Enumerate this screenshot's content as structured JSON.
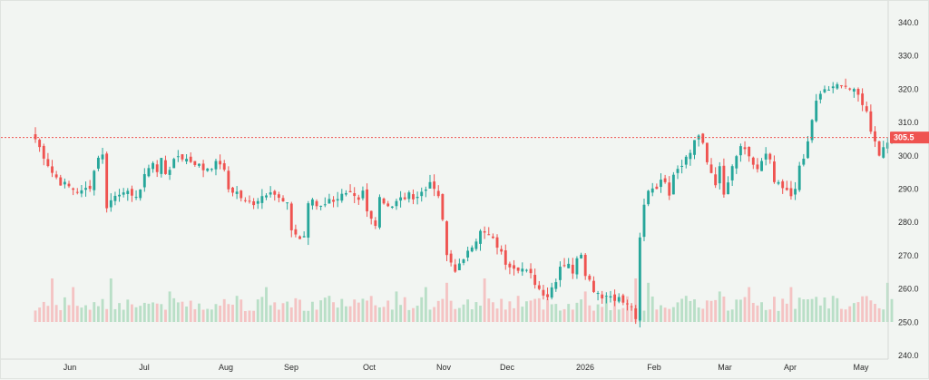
{
  "chart_data": {
    "type": "candlestick",
    "y_axis": {
      "min": 240,
      "max": 340,
      "ticks": [
        "340.0",
        "330.0",
        "320.0",
        "310.0",
        "300.0",
        "290.0",
        "280.0",
        "270.0",
        "260.0",
        "250.0",
        "240.0"
      ]
    },
    "x_axis": {
      "labels": [
        "Jun",
        "Jul",
        "Aug",
        "Sep",
        "Oct",
        "Nov",
        "Dec",
        "2026",
        "Feb",
        "Mar",
        "Apr",
        "May"
      ]
    },
    "current_price": {
      "value": 305.5,
      "label": "305.5"
    },
    "grid": false,
    "colors": {
      "up": "#26a69a",
      "down": "#ef5350",
      "volume_up": "#b9dfc7",
      "volume_down": "#f4c3c3",
      "price_line": "#ef5350"
    },
    "keypoints": [
      [
        0,
        305
      ],
      [
        2,
        300
      ],
      [
        4,
        295
      ],
      [
        6,
        292
      ],
      [
        9,
        290
      ],
      [
        11,
        289
      ],
      [
        13,
        291
      ],
      [
        15,
        300
      ],
      [
        16,
        300
      ],
      [
        17,
        285
      ],
      [
        19,
        288
      ],
      [
        21,
        290
      ],
      [
        23,
        287
      ],
      [
        25,
        290
      ],
      [
        27,
        297
      ],
      [
        28,
        298
      ],
      [
        29,
        295
      ],
      [
        30,
        299
      ],
      [
        31,
        295
      ],
      [
        33,
        298
      ],
      [
        34,
        300
      ],
      [
        36,
        299
      ],
      [
        38,
        298
      ],
      [
        40,
        296
      ],
      [
        42,
        297
      ],
      [
        44,
        298
      ],
      [
        45,
        295
      ],
      [
        46,
        290
      ],
      [
        48,
        289
      ],
      [
        50,
        286
      ],
      [
        52,
        286
      ],
      [
        54,
        288
      ],
      [
        56,
        290
      ],
      [
        58,
        287
      ],
      [
        60,
        285
      ],
      [
        61,
        278
      ],
      [
        63,
        275
      ],
      [
        64,
        276
      ],
      [
        65,
        285
      ],
      [
        66,
        287
      ],
      [
        67,
        285
      ],
      [
        69,
        286
      ],
      [
        71,
        287
      ],
      [
        73,
        288
      ],
      [
        75,
        288
      ],
      [
        77,
        286
      ],
      [
        78,
        289
      ],
      [
        79,
        283
      ],
      [
        80,
        281
      ],
      [
        81,
        280
      ],
      [
        82,
        288
      ],
      [
        83,
        286
      ],
      [
        85,
        285
      ],
      [
        87,
        287
      ],
      [
        89,
        288
      ],
      [
        91,
        288
      ],
      [
        93,
        290
      ],
      [
        94,
        293
      ],
      [
        95,
        289
      ],
      [
        96,
        288
      ],
      [
        97,
        280
      ],
      [
        98,
        270
      ],
      [
        100,
        266
      ],
      [
        102,
        268
      ],
      [
        103,
        272
      ],
      [
        105,
        275
      ],
      [
        106,
        277
      ],
      [
        108,
        276
      ],
      [
        110,
        273
      ],
      [
        112,
        268
      ],
      [
        114,
        267
      ],
      [
        116,
        266
      ],
      [
        118,
        264
      ],
      [
        120,
        260
      ],
      [
        122,
        258
      ],
      [
        124,
        263
      ],
      [
        125,
        267
      ],
      [
        127,
        268
      ],
      [
        128,
        264
      ],
      [
        129,
        270
      ],
      [
        130,
        271
      ],
      [
        131,
        265
      ],
      [
        133,
        260
      ],
      [
        135,
        258
      ],
      [
        137,
        258
      ],
      [
        139,
        257
      ],
      [
        140,
        256
      ],
      [
        141,
        255
      ],
      [
        142,
        255
      ],
      [
        143,
        250
      ],
      [
        144,
        275
      ],
      [
        145,
        285
      ],
      [
        146,
        290
      ],
      [
        148,
        291
      ],
      [
        150,
        293
      ],
      [
        151,
        289
      ],
      [
        152,
        295
      ],
      [
        154,
        298
      ],
      [
        156,
        301
      ],
      [
        157,
        305
      ],
      [
        158,
        306
      ],
      [
        159,
        303
      ],
      [
        160,
        298
      ],
      [
        162,
        292
      ],
      [
        163,
        296
      ],
      [
        164,
        288
      ],
      [
        165,
        292
      ],
      [
        166,
        296
      ],
      [
        168,
        303
      ],
      [
        170,
        299
      ],
      [
        172,
        296
      ],
      [
        174,
        300
      ],
      [
        175,
        298
      ],
      [
        176,
        292
      ],
      [
        178,
        290
      ],
      [
        180,
        288
      ],
      [
        181,
        291
      ],
      [
        182,
        296
      ],
      [
        183,
        299
      ],
      [
        184,
        304
      ],
      [
        185,
        311
      ],
      [
        186,
        316
      ],
      [
        188,
        320
      ],
      [
        190,
        320
      ],
      [
        192,
        322
      ],
      [
        194,
        320
      ],
      [
        196,
        318
      ],
      [
        197,
        316
      ],
      [
        198,
        313
      ],
      [
        199,
        308
      ],
      [
        200,
        305
      ],
      [
        201,
        300
      ],
      [
        202,
        303
      ],
      [
        203,
        305
      ],
      [
        204,
        306
      ]
    ],
    "volume_peaks": [
      [
        4,
        1.0
      ],
      [
        9,
        0.8
      ],
      [
        18,
        1.0
      ],
      [
        32,
        0.7
      ],
      [
        48,
        0.6
      ],
      [
        55,
        0.8
      ],
      [
        70,
        0.6
      ],
      [
        86,
        0.7
      ],
      [
        93,
        0.8
      ],
      [
        98,
        0.9
      ],
      [
        107,
        1.0
      ],
      [
        115,
        0.6
      ],
      [
        131,
        0.7
      ],
      [
        143,
        1.0
      ],
      [
        146,
        0.9
      ],
      [
        155,
        0.6
      ],
      [
        163,
        0.7
      ],
      [
        170,
        0.8
      ],
      [
        180,
        0.8
      ],
      [
        190,
        0.6
      ],
      [
        203,
        0.9
      ]
    ]
  }
}
